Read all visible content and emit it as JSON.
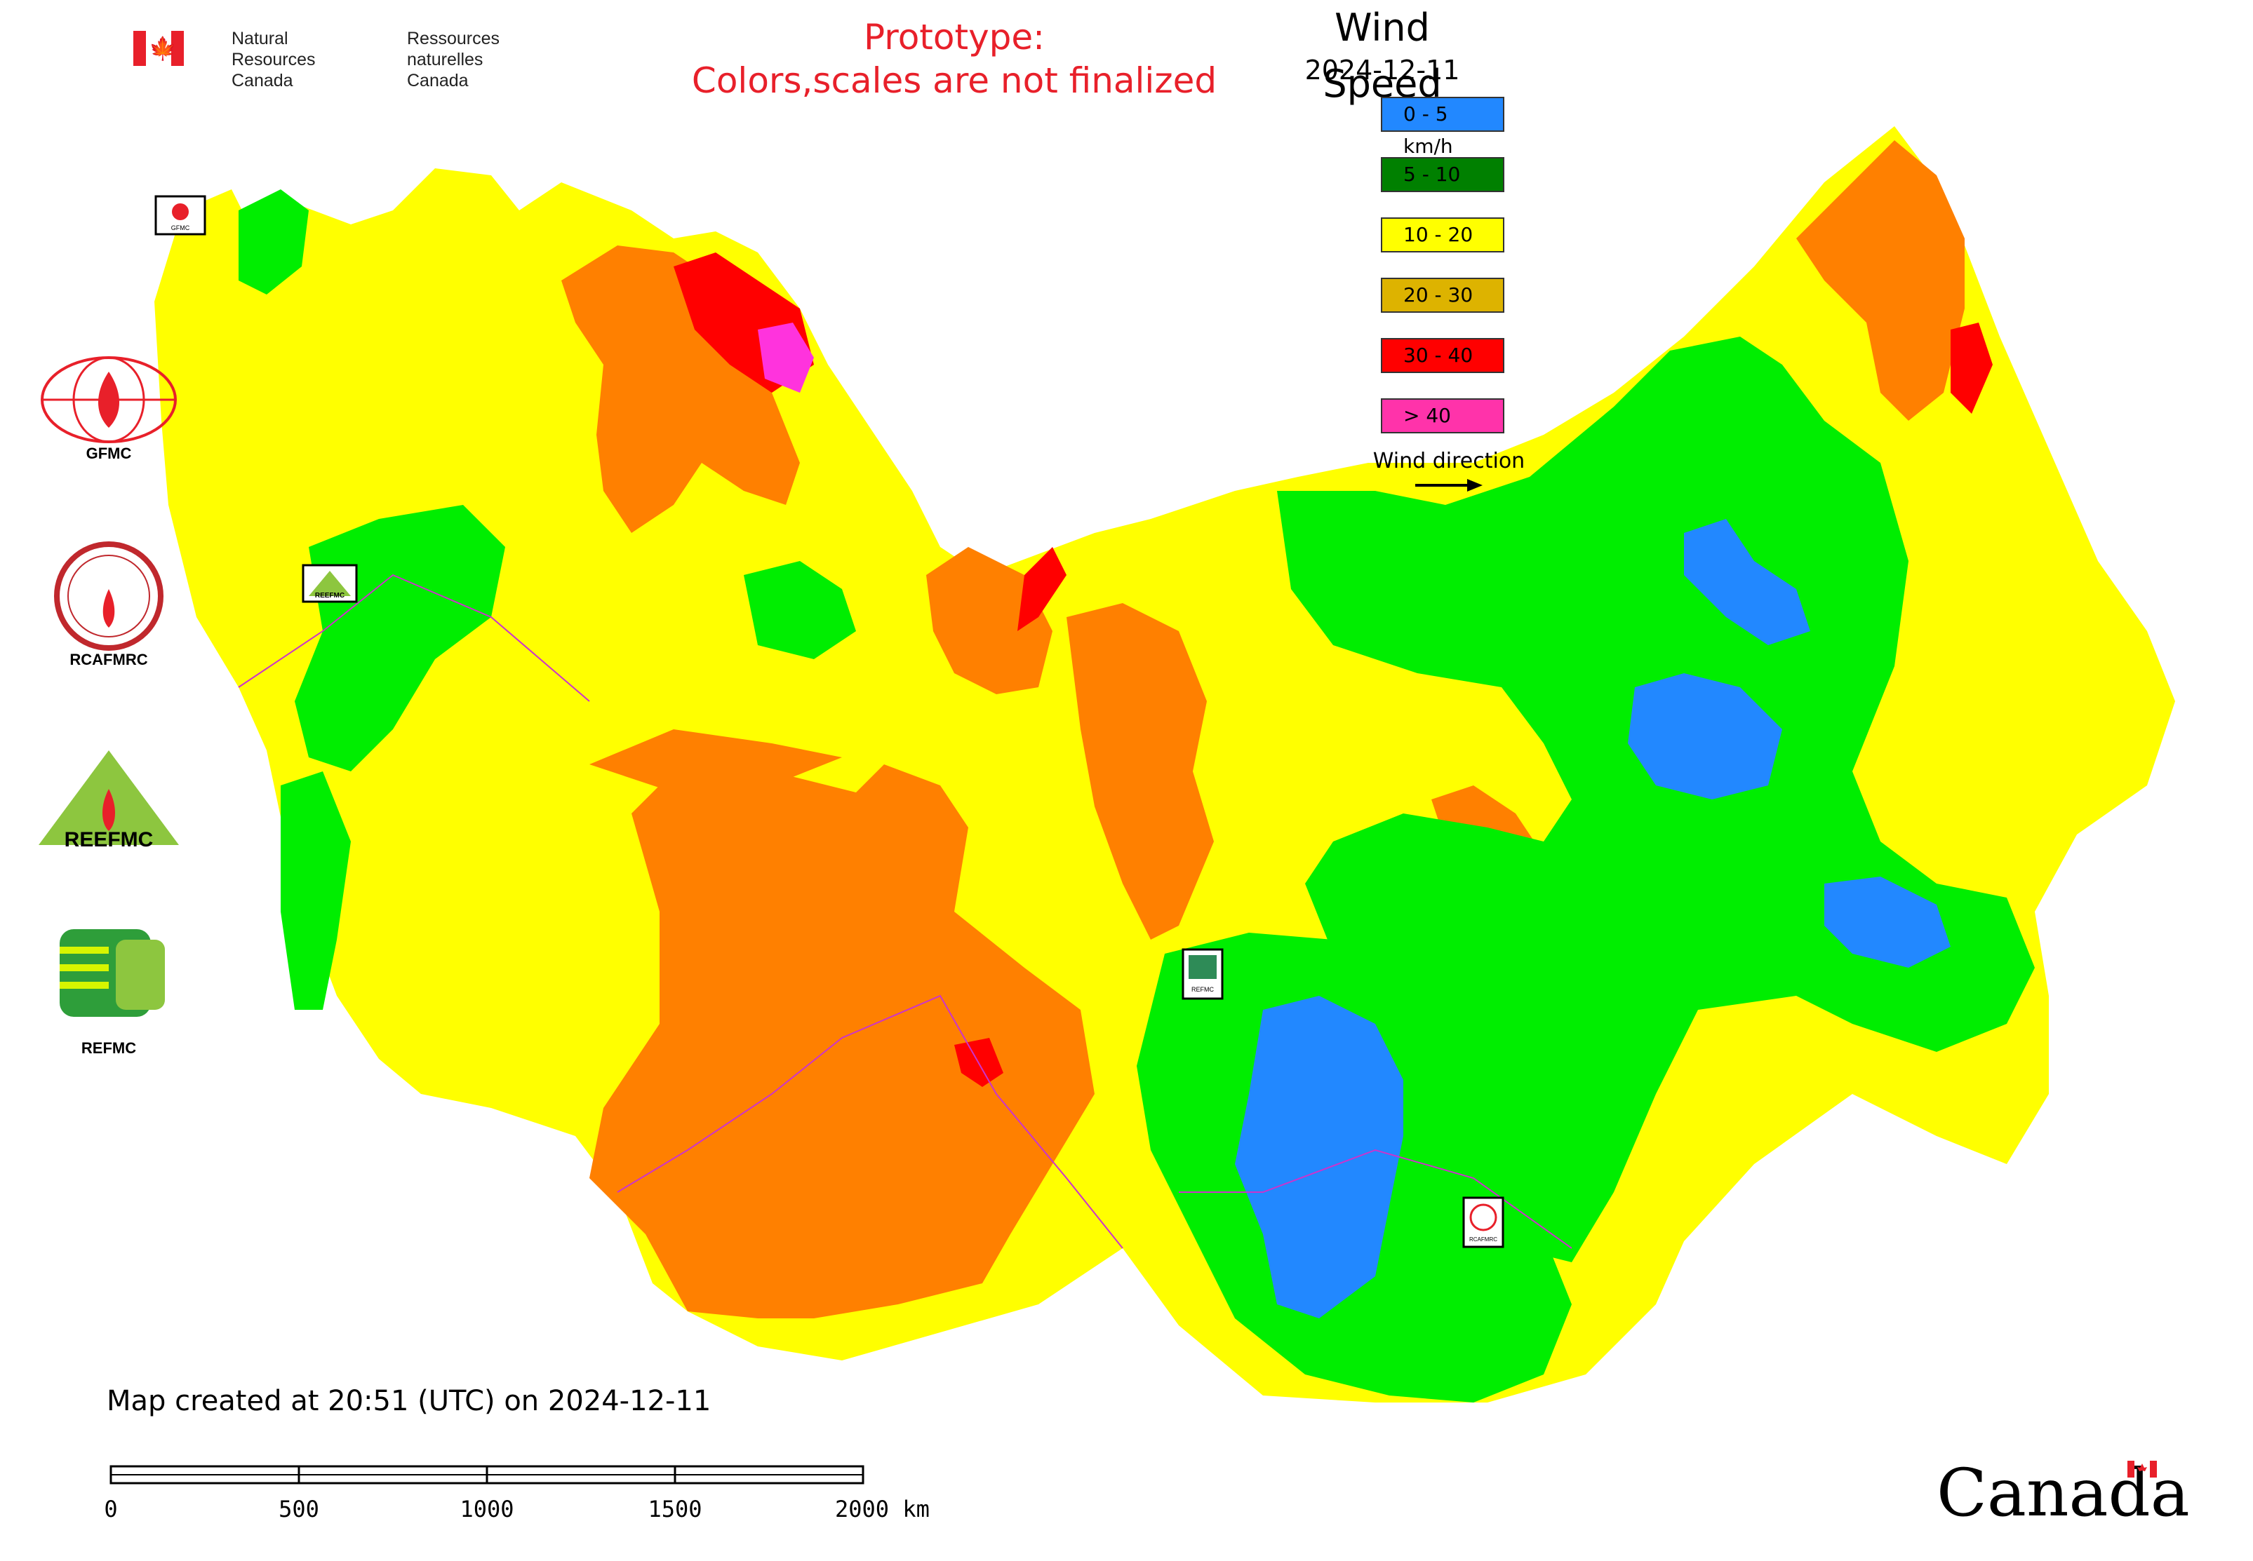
{
  "header": {
    "org_en_line1": "Natural Resources",
    "org_en_line2": "Canada",
    "org_fr_line1": "Ressources naturelles",
    "org_fr_line2": "Canada",
    "prototype_line1": "Prototype:",
    "prototype_line2": "Colors,scales are not finalized"
  },
  "legend": {
    "title": "Wind Speed",
    "date": "2024-12-11",
    "items": [
      {
        "label": "0 - 5 km/h",
        "color": "#2288ff"
      },
      {
        "label": "5 - 10",
        "color": "#008000"
      },
      {
        "label": "10 - 20",
        "color": "#ffff00"
      },
      {
        "label": "20 - 30",
        "color": "#ddb300"
      },
      {
        "label": "30 - 40",
        "color": "#ff0000"
      },
      {
        "label": "> 40",
        "color": "#ff33aa"
      }
    ],
    "wind_direction_label": "Wind direction"
  },
  "map_colors": {
    "calm": "#2288ff",
    "light": "#00ee00",
    "moderate": "#ffff00",
    "fresh": "#ff8000",
    "strong": "#ff0000",
    "gale": "#ff33dd",
    "boundary": "#cc33cc"
  },
  "side_logos": [
    {
      "label": "GFMC"
    },
    {
      "label": "RCAFMRC"
    },
    {
      "label": "REEFMC"
    },
    {
      "label": "REFMC"
    }
  ],
  "map_markers": [
    {
      "label": "GFMC"
    },
    {
      "label": "REEFMC"
    },
    {
      "label": "REFMC"
    },
    {
      "label": "RCAFMRC"
    }
  ],
  "footer": {
    "created": "Map created at 20:51 (UTC) on 2024-12-11",
    "scale_ticks": [
      "0",
      "500",
      "1000",
      "1500",
      "2000 km"
    ],
    "wordmark": "Canada"
  }
}
